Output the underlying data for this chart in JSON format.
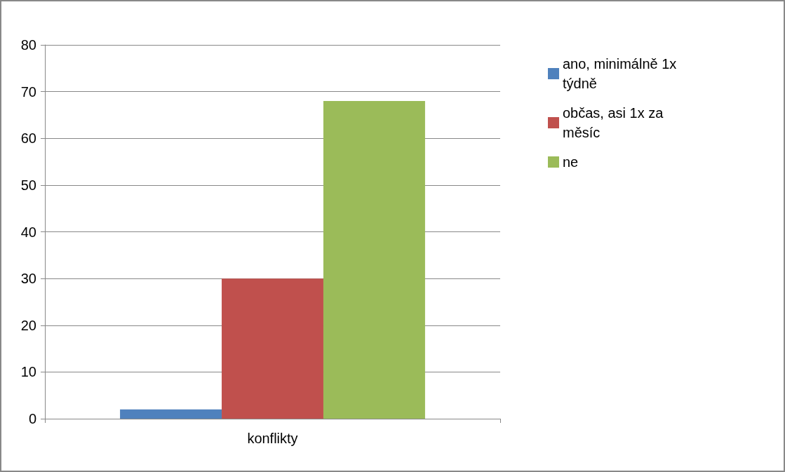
{
  "chart_data": {
    "type": "bar",
    "categories": [
      "konflikty"
    ],
    "series": [
      {
        "name": "ano, minimálně 1x týdně",
        "color": "#4f81bd",
        "values": [
          2
        ]
      },
      {
        "name": "občas, asi 1x za měsíc",
        "color": "#c0504d",
        "values": [
          30
        ]
      },
      {
        "name": "ne",
        "color": "#9bbb59",
        "values": [
          68
        ]
      }
    ],
    "ylim": [
      0,
      80
    ],
    "yticks": [
      0,
      10,
      20,
      30,
      40,
      50,
      60,
      70,
      80
    ],
    "grid": "y",
    "legend": "right"
  }
}
